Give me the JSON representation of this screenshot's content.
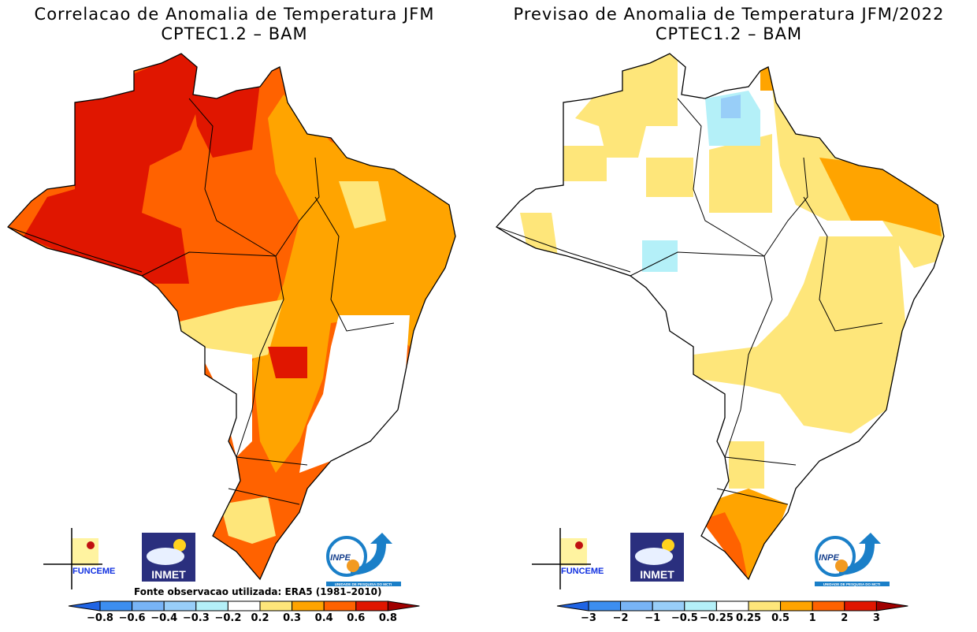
{
  "left": {
    "title_line1": "Correlacao de Anomalia de Temperatura JFM",
    "title_line2": "CPTEC1.2 – BAM",
    "source_note": "Fonte observacao utilizada: ERA5 (1981–2010)",
    "colorbar_labels": [
      "−0.8",
      "−0.6",
      "−0.4",
      "−0.3",
      "−0.2",
      "0.2",
      "0.3",
      "0.4",
      "0.6",
      "0.8"
    ]
  },
  "right": {
    "title_line1": "Previsao de Anomalia de Temperatura JFM/2022",
    "title_line2": "CPTEC1.2 – BAM",
    "colorbar_labels": [
      "−3",
      "−2",
      "−1",
      "−0.5",
      "−0.25",
      "0.25",
      "0.5",
      "1",
      "2",
      "3"
    ]
  },
  "colorbar_colors": {
    "low_arrow": "#2064e4",
    "boxes": [
      "#3c8ef0",
      "#78b4f6",
      "#98cef8",
      "#b4f0f8",
      "#ffffff",
      "#fee67a",
      "#ffa400",
      "#ff6200",
      "#e01600"
    ],
    "high_arrow": "#a00000"
  },
  "logos": {
    "funceme": "FUNCEME",
    "inmet": "INMET",
    "inpe": "INPE",
    "inpe_sub": "UNIDADE DE PESQUISA DO MCTI"
  }
}
